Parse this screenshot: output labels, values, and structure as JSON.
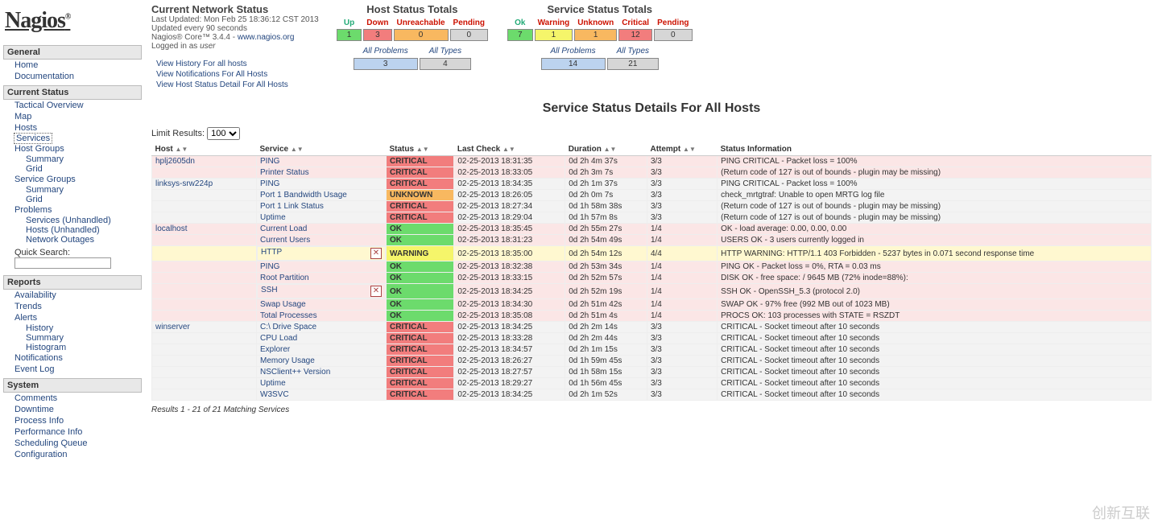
{
  "logo": "Nagios",
  "nav": [
    {
      "hdr": "General",
      "items": [
        {
          "label": "Home"
        },
        {
          "label": "Documentation"
        }
      ]
    },
    {
      "hdr": "Current Status",
      "items": [
        {
          "label": "Tactical Overview"
        },
        {
          "label": "Map"
        },
        {
          "label": "Hosts"
        },
        {
          "label": "Services",
          "sel": true
        },
        {
          "label": "Host Groups",
          "subs": [
            "Summary",
            "Grid"
          ]
        },
        {
          "label": "Service Groups",
          "subs": [
            "Summary",
            "Grid"
          ]
        },
        {
          "label": "Problems",
          "subs": [
            "Services (Unhandled)",
            "Hosts (Unhandled)",
            "Network Outages"
          ]
        }
      ],
      "quick_search": true
    },
    {
      "hdr": "Reports",
      "items": [
        {
          "label": "Availability"
        },
        {
          "label": "Trends"
        },
        {
          "label": "Alerts",
          "subs": [
            "History",
            "Summary",
            "Histogram"
          ]
        },
        {
          "label": "Notifications"
        },
        {
          "label": "Event Log"
        }
      ]
    },
    {
      "hdr": "System",
      "items": [
        {
          "label": "Comments"
        },
        {
          "label": "Downtime"
        },
        {
          "label": "Process Info"
        },
        {
          "label": "Performance Info"
        },
        {
          "label": "Scheduling Queue"
        },
        {
          "label": "Configuration"
        }
      ]
    }
  ],
  "quick_search_label": "Quick Search:",
  "status": {
    "title": "Current Network Status",
    "updated": "Last Updated: Mon Feb 25 18:36:12 CST 2013",
    "every": "Updated every 90 seconds",
    "core": "Nagios® Core™ 3.4.4 - ",
    "core_link": "www.nagios.org",
    "logged": "Logged in as ",
    "user": "user"
  },
  "status_links": [
    "View History For all hosts",
    "View Notifications For All Hosts",
    "View Host Status Detail For All Hosts"
  ],
  "host_totals": {
    "title": "Host Status Totals",
    "cols": [
      "Up",
      "Down",
      "Unreachable",
      "Pending"
    ],
    "vals": [
      "1",
      "3",
      "0",
      "0"
    ],
    "classes": [
      "up",
      "down",
      "unr",
      "pend"
    ],
    "problems": "3",
    "types": "4",
    "problems_lbl": "All Problems",
    "types_lbl": "All Types"
  },
  "svc_totals": {
    "title": "Service Status Totals",
    "cols": [
      "Ok",
      "Warning",
      "Unknown",
      "Critical",
      "Pending"
    ],
    "vals": [
      "7",
      "1",
      "1",
      "12",
      "0"
    ],
    "classes": [
      "ok",
      "warn",
      "unk",
      "crit",
      "pend"
    ],
    "problems": "14",
    "types": "21",
    "problems_lbl": "All Problems",
    "types_lbl": "All Types"
  },
  "big_title": "Service Status Details For All Hosts",
  "limit_label": "Limit Results:",
  "limit_value": "100",
  "table": {
    "headers": [
      "Host",
      "Service",
      "Status",
      "Last Check",
      "Duration",
      "Attempt",
      "Status Information"
    ],
    "rows": [
      {
        "host": "hplj2605dn",
        "svc": "PING",
        "st": "CRITICAL",
        "lc": "02-25-2013 18:31:35",
        "dur": "0d 2h 4m 37s",
        "att": "3/3",
        "info": "PING CRITICAL - Packet loss = 100%",
        "grp": 0
      },
      {
        "svc": "Printer Status",
        "st": "CRITICAL",
        "lc": "02-25-2013 18:33:05",
        "dur": "0d 2h 3m 7s",
        "att": "3/3",
        "info": "(Return code of 127 is out of bounds - plugin may be missing)",
        "grp": 0
      },
      {
        "host": "linksys-srw224p",
        "svc": "PING",
        "st": "CRITICAL",
        "lc": "02-25-2013 18:34:35",
        "dur": "0d 2h 1m 37s",
        "att": "3/3",
        "info": "PING CRITICAL - Packet loss = 100%",
        "grp": 1
      },
      {
        "svc": "Port 1 Bandwidth Usage",
        "st": "UNKNOWN",
        "lc": "02-25-2013 18:26:05",
        "dur": "0d 2h 0m 7s",
        "att": "3/3",
        "info": "check_mrtgtraf: Unable to open MRTG log file",
        "grp": 1
      },
      {
        "svc": "Port 1 Link Status",
        "st": "CRITICAL",
        "lc": "02-25-2013 18:27:34",
        "dur": "0d 1h 58m 38s",
        "att": "3/3",
        "info": "(Return code of 127 is out of bounds - plugin may be missing)",
        "grp": 1
      },
      {
        "svc": "Uptime",
        "st": "CRITICAL",
        "lc": "02-25-2013 18:29:04",
        "dur": "0d 1h 57m 8s",
        "att": "3/3",
        "info": "(Return code of 127 is out of bounds - plugin may be missing)",
        "grp": 1
      },
      {
        "host": "localhost",
        "svc": "Current Load",
        "st": "OK",
        "lc": "02-25-2013 18:35:45",
        "dur": "0d 2h 55m 27s",
        "att": "1/4",
        "info": "OK - load average: 0.00, 0.00, 0.00",
        "grp": 2
      },
      {
        "svc": "Current Users",
        "st": "OK",
        "lc": "02-25-2013 18:31:23",
        "dur": "0d 2h 54m 49s",
        "att": "1/4",
        "info": "USERS OK - 3 users currently logged in",
        "grp": 2
      },
      {
        "svc": "HTTP",
        "st": "WARNING",
        "lc": "02-25-2013 18:35:00",
        "dur": "0d 2h 54m 12s",
        "att": "4/4",
        "info": "HTTP WARNING: HTTP/1.1 403 Forbidden - 5237 bytes in 0.071 second response time",
        "grp": 2,
        "icon": true,
        "hl": true
      },
      {
        "svc": "PING",
        "st": "OK",
        "lc": "02-25-2013 18:32:38",
        "dur": "0d 2h 53m 34s",
        "att": "1/4",
        "info": "PING OK - Packet loss = 0%, RTA = 0.03 ms",
        "grp": 2
      },
      {
        "svc": "Root Partition",
        "st": "OK",
        "lc": "02-25-2013 18:33:15",
        "dur": "0d 2h 52m 57s",
        "att": "1/4",
        "info": "DISK OK - free space: / 9645 MB (72% inode=88%):",
        "grp": 2
      },
      {
        "svc": "SSH",
        "st": "OK",
        "lc": "02-25-2013 18:34:25",
        "dur": "0d 2h 52m 19s",
        "att": "1/4",
        "info": "SSH OK - OpenSSH_5.3 (protocol 2.0)",
        "grp": 2,
        "icon": true
      },
      {
        "svc": "Swap Usage",
        "st": "OK",
        "lc": "02-25-2013 18:34:30",
        "dur": "0d 2h 51m 42s",
        "att": "1/4",
        "info": "SWAP OK - 97% free (992 MB out of 1023 MB)",
        "grp": 2
      },
      {
        "svc": "Total Processes",
        "st": "OK",
        "lc": "02-25-2013 18:35:08",
        "dur": "0d 2h 51m 4s",
        "att": "1/4",
        "info": "PROCS OK: 103 processes with STATE = RSZDT",
        "grp": 2
      },
      {
        "host": "winserver",
        "svc": "C:\\ Drive Space",
        "st": "CRITICAL",
        "lc": "02-25-2013 18:34:25",
        "dur": "0d 2h 2m 14s",
        "att": "3/3",
        "info": "CRITICAL - Socket timeout after 10 seconds",
        "grp": 3
      },
      {
        "svc": "CPU Load",
        "st": "CRITICAL",
        "lc": "02-25-2013 18:33:28",
        "dur": "0d 2h 2m 44s",
        "att": "3/3",
        "info": "CRITICAL - Socket timeout after 10 seconds",
        "grp": 3
      },
      {
        "svc": "Explorer",
        "st": "CRITICAL",
        "lc": "02-25-2013 18:34:57",
        "dur": "0d 2h 1m 15s",
        "att": "3/3",
        "info": "CRITICAL - Socket timeout after 10 seconds",
        "grp": 3
      },
      {
        "svc": "Memory Usage",
        "st": "CRITICAL",
        "lc": "02-25-2013 18:26:27",
        "dur": "0d 1h 59m 45s",
        "att": "3/3",
        "info": "CRITICAL - Socket timeout after 10 seconds",
        "grp": 3
      },
      {
        "svc": "NSClient++ Version",
        "st": "CRITICAL",
        "lc": "02-25-2013 18:27:57",
        "dur": "0d 1h 58m 15s",
        "att": "3/3",
        "info": "CRITICAL - Socket timeout after 10 seconds",
        "grp": 3
      },
      {
        "svc": "Uptime",
        "st": "CRITICAL",
        "lc": "02-25-2013 18:29:27",
        "dur": "0d 1h 56m 45s",
        "att": "3/3",
        "info": "CRITICAL - Socket timeout after 10 seconds",
        "grp": 3
      },
      {
        "svc": "W3SVC",
        "st": "CRITICAL",
        "lc": "02-25-2013 18:34:25",
        "dur": "0d 2h 1m 52s",
        "att": "3/3",
        "info": "CRITICAL - Socket timeout after 10 seconds",
        "grp": 3
      }
    ]
  },
  "results_text": "Results 1 - 21 of 21 Matching Services",
  "watermark": "创新互联"
}
